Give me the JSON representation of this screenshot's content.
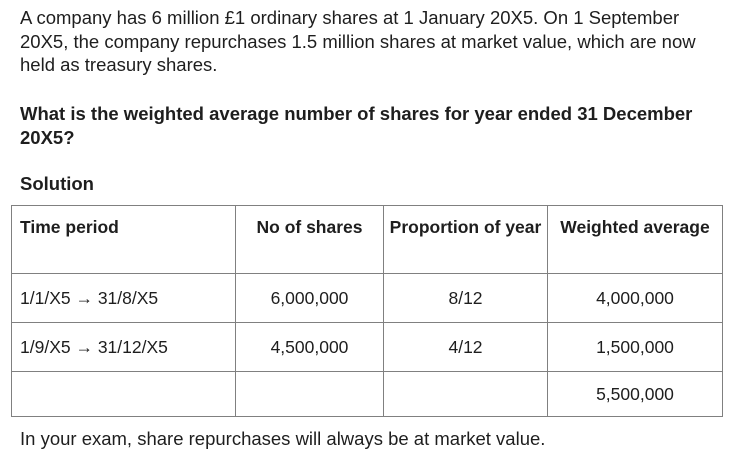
{
  "intro": "A company has 6 million £1 ordinary shares at 1 January 20X5. On 1 September 20X5, the company repurchases 1.5 million shares at market value, which are now held as treasury shares.",
  "question": "What is the weighted average number of shares for year ended 31 December 20X5?",
  "solution_heading": "Solution",
  "table": {
    "headers": [
      "Time period",
      "No of shares",
      "Proportion of year",
      "Weighted average"
    ],
    "rows": [
      {
        "period": "1/1/X5 → 31/8/X5",
        "shares": "6,000,000",
        "proportion": "8/12",
        "weighted": "4,000,000"
      },
      {
        "period": "1/9/X5 → 31/12/X5",
        "shares": "4,500,000",
        "proportion": "4/12",
        "weighted": "1,500,000"
      }
    ],
    "total": "5,500,000"
  },
  "note": "In your exam, share repurchases will always be at market value."
}
